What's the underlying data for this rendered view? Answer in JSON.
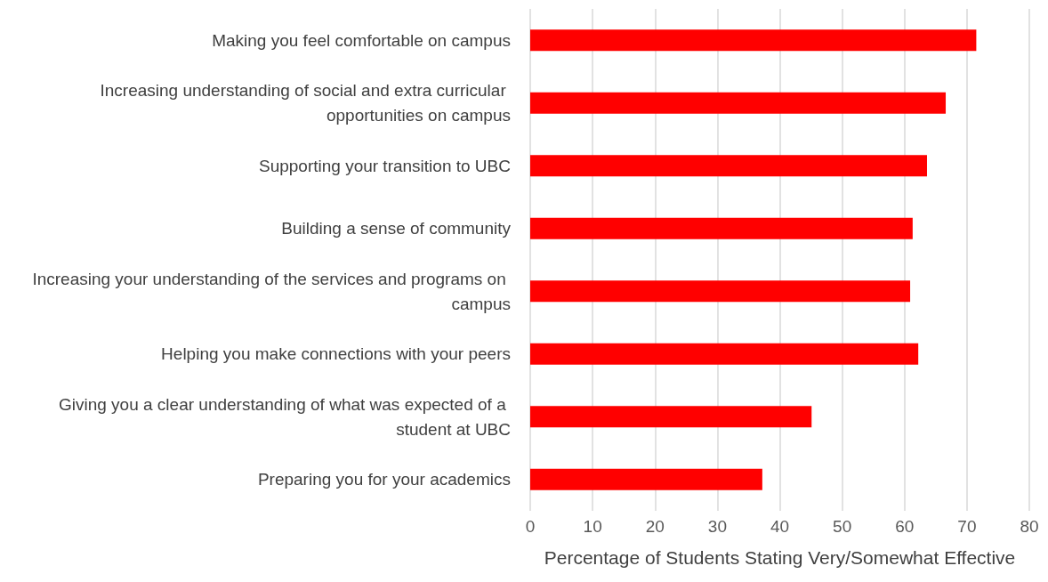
{
  "chart_data": {
    "type": "bar",
    "orientation": "horizontal",
    "xlabel": "Percentage of Students Stating Very/Somewhat Effective",
    "categories": [
      "Making you feel comfortable on campus",
      "Increasing understanding of social and extra curricular opportunities on campus",
      "Supporting your transition to UBC",
      "Building a sense of community",
      "Increasing your understanding of the services and programs on campus",
      "Helping you make connections with your peers",
      "Giving you a clear understanding of what was expected of a student at UBC",
      "Preparing you for your academics"
    ],
    "values": [
      71.5,
      66.6,
      63.6,
      61.3,
      60.9,
      62.2,
      45.1,
      37.2
    ],
    "color": "#ff0000",
    "xlim": [
      0,
      80
    ],
    "xticks": [
      0,
      10,
      20,
      30,
      40,
      50,
      60,
      70,
      80
    ],
    "grid": "x"
  }
}
